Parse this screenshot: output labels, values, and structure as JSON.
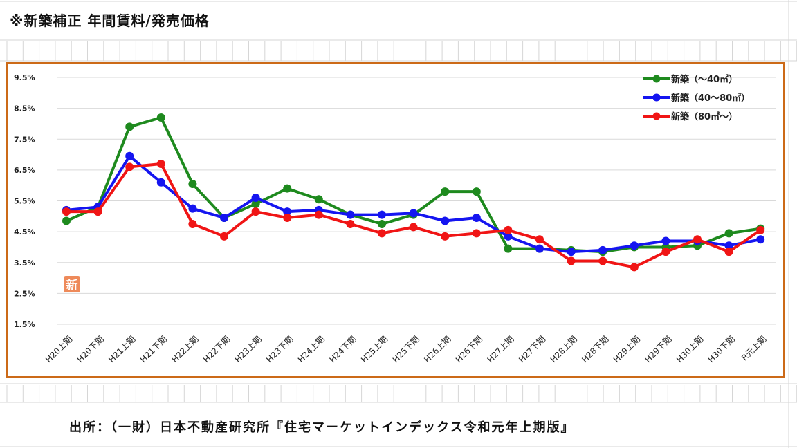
{
  "header": {
    "title": "※新築補正 年間賃料/発売価格"
  },
  "footer": {
    "source": "出所：（一財）日本不動産研究所『住宅マーケットインデックス令和元年上期版』"
  },
  "badge": {
    "text": "新"
  },
  "colors": {
    "frame": "#cc6a18",
    "green": "#1e8a1e",
    "blue": "#1515f0",
    "red": "#f01515",
    "grid": "#d9d9d9"
  },
  "chart_data": {
    "type": "line",
    "title": "",
    "xlabel": "",
    "ylabel": "",
    "ylim": [
      1.5,
      9.5
    ],
    "yticks": [
      "9.5%",
      "8.5%",
      "7.5%",
      "6.5%",
      "5.5%",
      "4.5%",
      "3.5%",
      "2.5%",
      "1.5%"
    ],
    "ytick_values": [
      9.5,
      8.5,
      7.5,
      6.5,
      5.5,
      4.5,
      3.5,
      2.5,
      1.5
    ],
    "grid": "horizontal",
    "legend_position": "top-right",
    "categories": [
      "H20上期",
      "H20下期",
      "H21上期",
      "H21下期",
      "H22上期",
      "H22下期",
      "H23上期",
      "H23下期",
      "H24上期",
      "H24下期",
      "H25上期",
      "H25下期",
      "H26上期",
      "H26下期",
      "H27上期",
      "H27下期",
      "H28上期",
      "H28下期",
      "H29上期",
      "H29下期",
      "H30上期",
      "H30下期",
      "R元上期"
    ],
    "series": [
      {
        "name": "新築（～40㎡）",
        "color": "#1e8a1e",
        "values": [
          4.85,
          5.3,
          7.9,
          8.2,
          6.05,
          4.95,
          5.4,
          5.9,
          5.55,
          5.05,
          4.75,
          5.05,
          5.8,
          5.8,
          3.95,
          3.95,
          3.9,
          3.85,
          4.0,
          4.0,
          4.05,
          4.45,
          4.6
        ]
      },
      {
        "name": "新築（40～80㎡）",
        "color": "#1515f0",
        "values": [
          5.2,
          5.3,
          6.95,
          6.1,
          5.25,
          4.95,
          5.6,
          5.15,
          5.2,
          5.05,
          5.05,
          5.1,
          4.85,
          4.95,
          4.35,
          3.95,
          3.85,
          3.9,
          4.05,
          4.2,
          4.2,
          4.05,
          4.25
        ]
      },
      {
        "name": "新築（80㎡～）",
        "color": "#f01515",
        "values": [
          5.15,
          5.15,
          6.6,
          6.7,
          4.75,
          4.35,
          5.15,
          4.95,
          5.05,
          4.75,
          4.45,
          4.65,
          4.35,
          4.45,
          4.55,
          4.25,
          3.55,
          3.55,
          3.35,
          3.85,
          4.25,
          3.85,
          4.55
        ]
      }
    ]
  }
}
